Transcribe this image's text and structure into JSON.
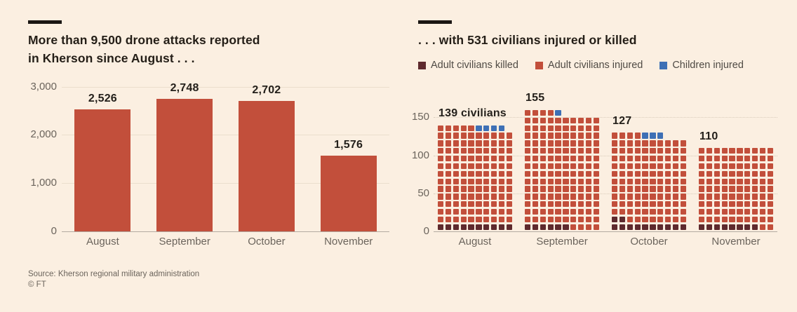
{
  "page": {
    "background_color": "#FBEFE1",
    "kicker_color": "#1A1613",
    "muted_text_color": "#6B645C",
    "title_text_color": "#241E17"
  },
  "footer": {
    "source": "Source: Kherson regional military administration",
    "copyright": "© FT"
  },
  "chart_data": [
    {
      "type": "bar",
      "title": "More than 9,500 drone attacks reported\nin Kherson since August . . .",
      "categories": [
        "August",
        "September",
        "October",
        "November"
      ],
      "values": [
        2526,
        2748,
        2702,
        1576
      ],
      "values_formatted": [
        "2,526",
        "2,748",
        "2,702",
        "1,576"
      ],
      "xlabel": "",
      "ylabel": "",
      "ylim": [
        0,
        3000
      ],
      "yticks": [
        0,
        1000,
        2000,
        3000
      ],
      "ytick_labels": [
        "0",
        "1,000",
        "2,000",
        "3,000"
      ],
      "grid": "horizontal-solid",
      "legend_position": "none",
      "bar_color": "#C24F3B",
      "gridline_color": "#EBDECD",
      "baseline_color": "#B3AAA1"
    },
    {
      "type": "waffle",
      "title": ". . . with 531 civilians injured or killed",
      "total": 531,
      "unit_per_square": 1,
      "squares_per_row": 10,
      "categories": [
        "August",
        "September",
        "October",
        "November"
      ],
      "totals": [
        139,
        155,
        127,
        110
      ],
      "total_labels": [
        "139 civilians",
        "155",
        "127",
        "110"
      ],
      "series": [
        {
          "name": "Adult civilians killed",
          "color": "#5E2A2E",
          "values": [
            10,
            6,
            12,
            8
          ]
        },
        {
          "name": "Adult civilians injured",
          "color": "#C24F3B",
          "values": [
            125,
            148,
            112,
            102
          ]
        },
        {
          "name": "Children injured",
          "color": "#3E70B5",
          "values": [
            4,
            1,
            3,
            0
          ]
        }
      ],
      "ylim": [
        0,
        160
      ],
      "yticks": [
        0,
        50,
        100,
        150
      ],
      "ytick_labels": [
        "0",
        "50",
        "100",
        "150"
      ],
      "grid": "horizontal-dotted",
      "legend_position": "top",
      "gridline_color": "#DACCBB",
      "baseline_color": "#B3AAA1"
    }
  ]
}
